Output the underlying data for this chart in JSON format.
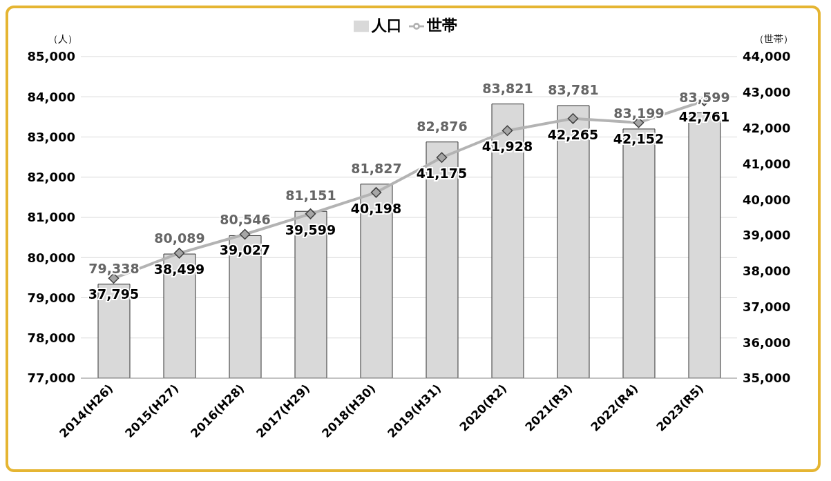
{
  "chart_data": {
    "type": "bar",
    "ylabel": "（人）",
    "y2label": "（世帯）",
    "categories": [
      "2014(H26)",
      "2015(H27)",
      "2016(H28)",
      "2017(H29)",
      "2018(H30)",
      "2019(H31)",
      "2020(R2)",
      "2021(R3)",
      "2022(R4)",
      "2023(R5)"
    ],
    "series": [
      {
        "name": "人口",
        "color": "#d9d9d9",
        "values": [
          79338,
          80089,
          80546,
          81151,
          81827,
          82876,
          83821,
          83781,
          83199,
          83599
        ],
        "value_labels": [
          "79,338",
          "80,089",
          "80,546",
          "81,151",
          "81,827",
          "82,876",
          "83,821",
          "83,781",
          "83,199",
          "83,599"
        ]
      },
      {
        "name": "世帯",
        "type": "line",
        "axis": "y2",
        "color": "#b3b3b3",
        "values": [
          37795,
          38499,
          39027,
          39599,
          40198,
          41175,
          41928,
          42265,
          42152,
          42761
        ],
        "value_labels": [
          "37,795",
          "38,499",
          "39,027",
          "39,599",
          "40,198",
          "41,175",
          "41,928",
          "42,265",
          "42,152",
          "42,761"
        ]
      }
    ],
    "ylim": [
      77000,
      85000
    ],
    "yticks": [
      {
        "value": 77000,
        "label": "77,000"
      },
      {
        "value": 78000,
        "label": "78,000"
      },
      {
        "value": 79000,
        "label": "79,000"
      },
      {
        "value": 80000,
        "label": "80,000"
      },
      {
        "value": 81000,
        "label": "81,000"
      },
      {
        "value": 82000,
        "label": "82,000"
      },
      {
        "value": 83000,
        "label": "83,000"
      },
      {
        "value": 84000,
        "label": "84,000"
      },
      {
        "value": 85000,
        "label": "85,000"
      }
    ],
    "y2lim": [
      35000,
      44000
    ],
    "y2ticks": [
      {
        "value": 35000,
        "label": "35,000"
      },
      {
        "value": 36000,
        "label": "36,000"
      },
      {
        "value": 37000,
        "label": "37,000"
      },
      {
        "value": 38000,
        "label": "38,000"
      },
      {
        "value": 39000,
        "label": "39,000"
      },
      {
        "value": 40000,
        "label": "40,000"
      },
      {
        "value": 41000,
        "label": "41,000"
      },
      {
        "value": 42000,
        "label": "42,000"
      },
      {
        "value": 43000,
        "label": "43,000"
      },
      {
        "value": 44000,
        "label": "44,000"
      }
    ],
    "grid": "y",
    "legend": "top",
    "marker": "diamond"
  }
}
